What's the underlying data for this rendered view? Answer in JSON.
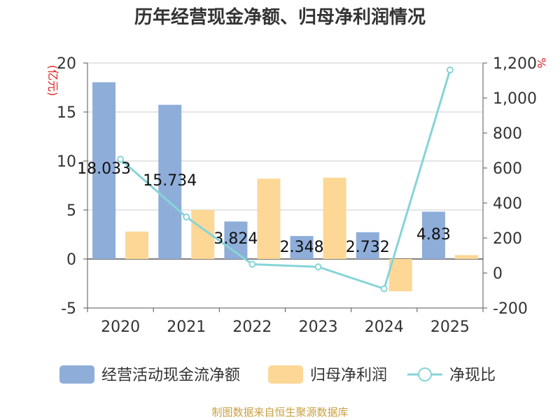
{
  "chart_data": {
    "type": "bar",
    "title": "历年经营现金净额、归母净利润情况",
    "categories": [
      "2020",
      "2021",
      "2022",
      "2023",
      "2024",
      "2025"
    ],
    "series": [
      {
        "name": "经营活动现金流净额",
        "type": "bar",
        "axis": "left",
        "color": "#8eadd9",
        "values": [
          18.033,
          15.734,
          3.824,
          2.348,
          2.732,
          4.83
        ]
      },
      {
        "name": "归母净利润",
        "type": "bar",
        "axis": "left",
        "color": "#fdd795",
        "values": [
          2.8,
          5.0,
          8.2,
          8.3,
          -3.3,
          0.4
        ]
      },
      {
        "name": "净现比",
        "type": "line",
        "axis": "right",
        "color": "#86d4d8",
        "values": [
          650,
          320,
          50,
          35,
          -90,
          1160
        ]
      }
    ],
    "data_labels": [
      "18.033",
      "15.734",
      "3.824",
      "2.348",
      "2.732",
      "4.83"
    ],
    "y_left": {
      "unit": "(亿元)",
      "ylim": [
        -5,
        20
      ],
      "ticks": [
        "-5",
        "0",
        "5",
        "10",
        "15",
        "20"
      ]
    },
    "y_right": {
      "unit": "%",
      "ylim": [
        -200,
        1200
      ],
      "ticks": [
        "-200",
        "0",
        "200",
        "400",
        "600",
        "800",
        "1,000",
        "1,200"
      ]
    },
    "legend": {
      "position": "bottom"
    },
    "source": "制图数据来自恒生聚源数据库"
  }
}
